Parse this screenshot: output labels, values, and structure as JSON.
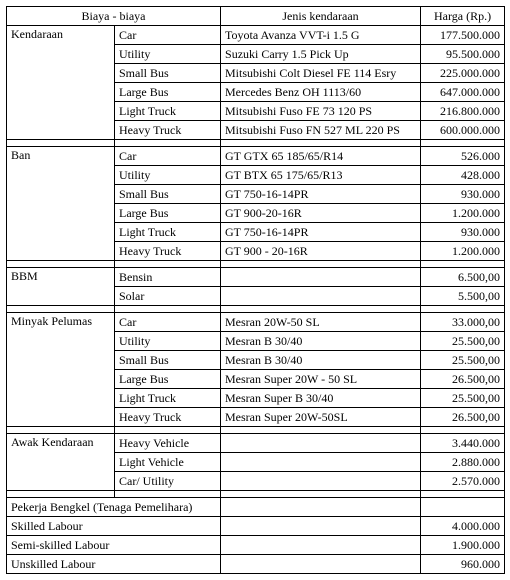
{
  "headers": {
    "biaya": "Biaya - biaya",
    "jenis": "Jenis kendaraan",
    "harga": "Harga (Rp.)"
  },
  "sections": {
    "kendaraan": {
      "name": "Kendaraan",
      "rows": [
        {
          "sub": "Car",
          "jenis": "Toyota Avanza VVT-i 1.5 G",
          "harga": "177.500.000"
        },
        {
          "sub": "Utility",
          "jenis": "Suzuki Carry 1.5 Pick Up",
          "harga": "95.500.000"
        },
        {
          "sub": "Small Bus",
          "jenis": "Mitsubishi Colt Diesel FE 114 Esry",
          "harga": "225.000.000"
        },
        {
          "sub": "Large Bus",
          "jenis": "Mercedes Benz OH 1113/60",
          "harga": "647.000.000"
        },
        {
          "sub": "Light Truck",
          "jenis": "Mitsubishi Fuso FE 73 120 PS",
          "harga": "216.800.000"
        },
        {
          "sub": "Heavy Truck",
          "jenis": "Mitsubishi Fuso FN 527 ML 220 PS",
          "harga": "600.000.000"
        }
      ]
    },
    "ban": {
      "name": "Ban",
      "rows": [
        {
          "sub": "Car",
          "jenis": "GT GTX 65 185/65/R14",
          "harga": "526.000"
        },
        {
          "sub": "Utility",
          "jenis": "GT BTX 65 175/65/R13",
          "harga": "428.000"
        },
        {
          "sub": "Small Bus",
          "jenis": "GT 750-16-14PR",
          "harga": "930.000"
        },
        {
          "sub": "Large Bus",
          "jenis": "GT 900-20-16R",
          "harga": "1.200.000"
        },
        {
          "sub": "Light Truck",
          "jenis": "GT 750-16-14PR",
          "harga": "930.000"
        },
        {
          "sub": "Heavy Truck",
          "jenis": "GT 900 - 20-16R",
          "harga": "1.200.000"
        }
      ]
    },
    "bbm": {
      "name": "BBM",
      "rows": [
        {
          "sub": "Bensin",
          "jenis": "",
          "harga": "6.500,00"
        },
        {
          "sub": "Solar",
          "jenis": "",
          "harga": "5.500,00"
        }
      ]
    },
    "pelumas": {
      "name": "Minyak Pelumas",
      "rows": [
        {
          "sub": "Car",
          "jenis": "Mesran 20W-50 SL",
          "harga": "33.000,00"
        },
        {
          "sub": "Utility",
          "jenis": "Mesran B 30/40",
          "harga": "25.500,00"
        },
        {
          "sub": "Small Bus",
          "jenis": "Mesran B 30/40",
          "harga": "25.500,00"
        },
        {
          "sub": "Large Bus",
          "jenis": "Mesran Super 20W - 50 SL",
          "harga": "26.500,00"
        },
        {
          "sub": "Light Truck",
          "jenis": "Mesran Super B 30/40",
          "harga": "25.500,00"
        },
        {
          "sub": "Heavy Truck",
          "jenis": "Mesran Super 20W-50SL",
          "harga": "26.500,00"
        }
      ]
    },
    "awak": {
      "name": "Awak Kendaraan",
      "rows": [
        {
          "sub": "Heavy Vehicle",
          "jenis": "",
          "harga": "3.440.000"
        },
        {
          "sub": "Light Vehicle",
          "jenis": "",
          "harga": "2.880.000"
        },
        {
          "sub": "Car/ Utility",
          "jenis": "",
          "harga": "2.570.000"
        }
      ]
    },
    "bengkel": {
      "name": "Pekerja Bengkel (Tenaga Pemelihara)",
      "rows": [
        {
          "sub": "Skilled Labour",
          "jenis": "",
          "harga": "4.000.000"
        },
        {
          "sub": "Semi-skilled Labour",
          "jenis": "",
          "harga": "1.900.000"
        },
        {
          "sub": "Unskilled Labour",
          "jenis": "",
          "harga": "960.000"
        }
      ]
    }
  }
}
